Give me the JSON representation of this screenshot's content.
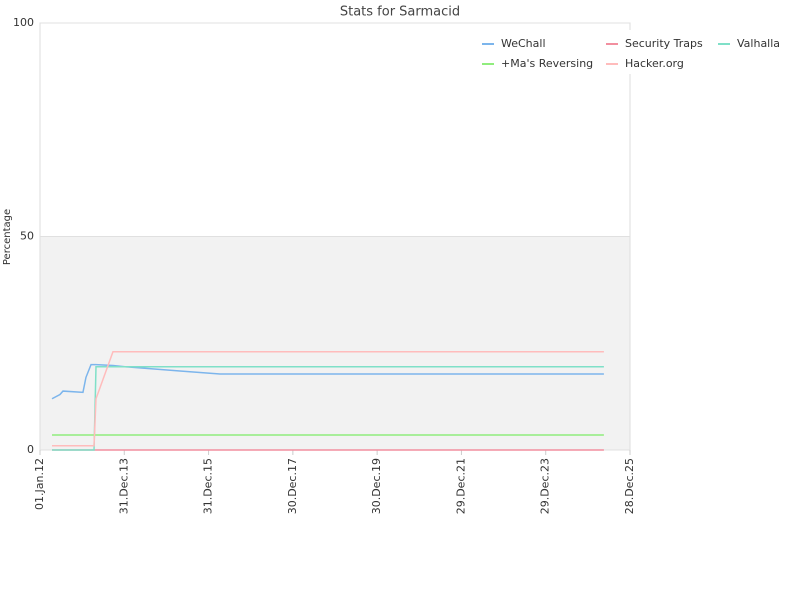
{
  "chart_data": {
    "type": "line",
    "title": "Stats for Sarmacid",
    "y_label": "Percentage",
    "x": [
      "2012-04-14",
      "2012-06-22",
      "2012-07-18",
      "2013-01-07",
      "2013-02-02",
      "2013-03-18",
      "2013-04-13",
      "2013-04-30",
      "2013-09-24",
      "2014-01-06",
      "2015-04-27",
      "2016-04-08",
      "2025-05-16"
    ],
    "series": [
      {
        "name": "WeChall",
        "color": "#7cb5ec",
        "values": [
          12,
          13,
          13.8,
          13.5,
          17,
          20,
          20,
          20,
          19.8,
          19.5,
          18.5,
          17.8,
          17.8
        ]
      },
      {
        "name": "Security Traps",
        "color": "#f28f9f",
        "values": [
          0,
          0,
          0,
          0,
          0,
          0,
          0,
          0,
          0,
          0,
          0,
          0,
          0
        ]
      },
      {
        "name": "Valhalla",
        "color": "#7fe0c8",
        "values": [
          0,
          0,
          0,
          0,
          0,
          0,
          0,
          19.5,
          19.5,
          19.5,
          19.5,
          19.5,
          19.5
        ]
      },
      {
        "name": "+Ma's Reversing",
        "color": "#90ed7d",
        "values": [
          3.5,
          3.5,
          3.5,
          3.5,
          3.5,
          3.5,
          3.5,
          3.5,
          3.5,
          3.5,
          3.5,
          3.5,
          3.5
        ]
      },
      {
        "name": "Hacker.org",
        "color": "#ffbcbc",
        "values": [
          1,
          1,
          1,
          1,
          1,
          1,
          1,
          12,
          23,
          23,
          23,
          23,
          23
        ]
      }
    ],
    "xlim": [
      "2012-01-01",
      "2025-12-28"
    ],
    "xticks": [
      {
        "value": "2012-01-01",
        "label": "01.Jan.12"
      },
      {
        "value": "2013-12-31",
        "label": "31.Dec.13"
      },
      {
        "value": "2015-12-31",
        "label": "31.Dec.15"
      },
      {
        "value": "2017-12-30",
        "label": "30.Dec.17"
      },
      {
        "value": "2019-12-30",
        "label": "30.Dec.19"
      },
      {
        "value": "2021-12-29",
        "label": "29.Dec.21"
      },
      {
        "value": "2023-12-29",
        "label": "29.Dec.23"
      },
      {
        "value": "2025-12-28",
        "label": "28.Dec.25"
      }
    ],
    "ylim": [
      0,
      100
    ],
    "yticks": [
      0,
      50,
      100
    ],
    "alternate_band_color": "#f2f2f2",
    "legend": "top-right"
  }
}
